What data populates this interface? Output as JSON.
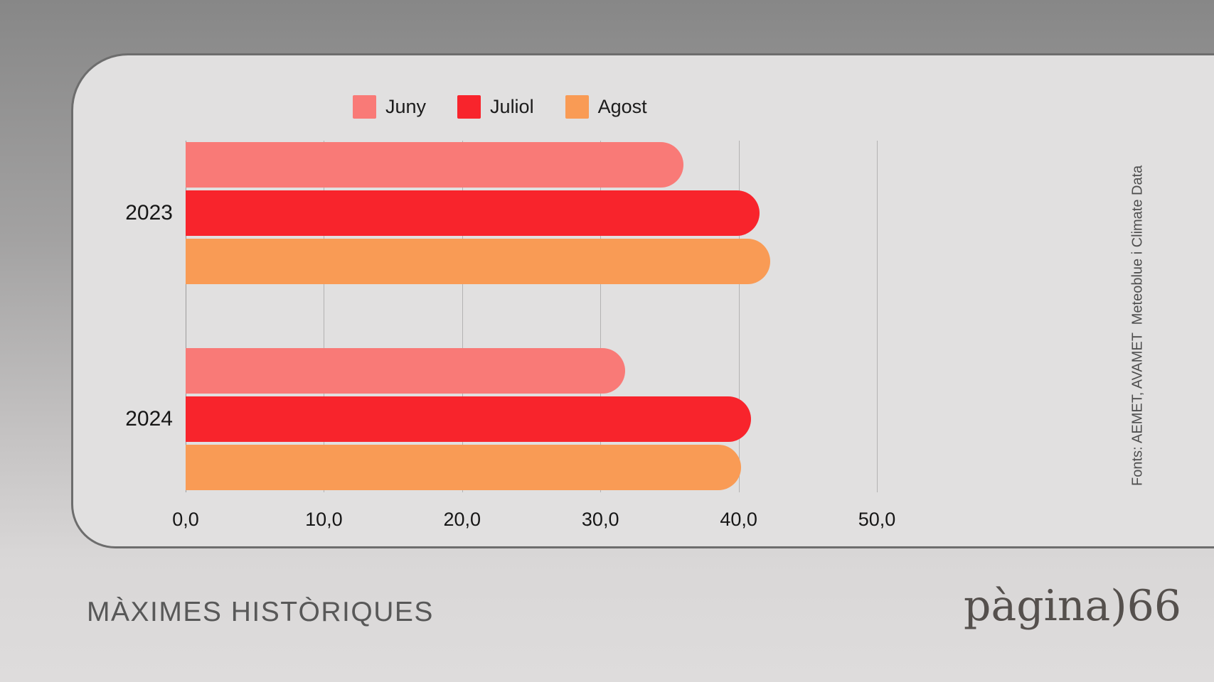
{
  "source_note": "Fonts: AEMET, AVAMET  Meteoblue i Climate Data",
  "footer": {
    "logo": "pàgina)66"
  },
  "colors": {
    "juny": "#f97a77",
    "juliol": "#f8242c",
    "agost": "#f99b55",
    "card_bg": "#e1e0e0",
    "gridline": "#b3b2b2",
    "text_dark": "#1b1b1b",
    "muted_text": "#585858"
  },
  "chart_data": {
    "type": "bar",
    "orientation": "horizontal",
    "title": "MÀXIMES HISTÒRIQUES",
    "categories": [
      "2023",
      "2024"
    ],
    "series": [
      {
        "name": "Juny",
        "color": "#f97a77",
        "values": [
          36.0,
          31.8
        ]
      },
      {
        "name": "Juliol",
        "color": "#f8242c",
        "values": [
          41.5,
          40.9
        ]
      },
      {
        "name": "Agost",
        "color": "#f99b55",
        "values": [
          42.3,
          40.2
        ]
      }
    ],
    "x_ticks": [
      "0,0",
      "10,0",
      "20,0",
      "30,0",
      "40,0",
      "50,0"
    ],
    "x_tick_values": [
      0,
      10,
      20,
      30,
      40,
      50
    ],
    "xlim": [
      0,
      50
    ],
    "legend_position": "top",
    "grid": true
  }
}
